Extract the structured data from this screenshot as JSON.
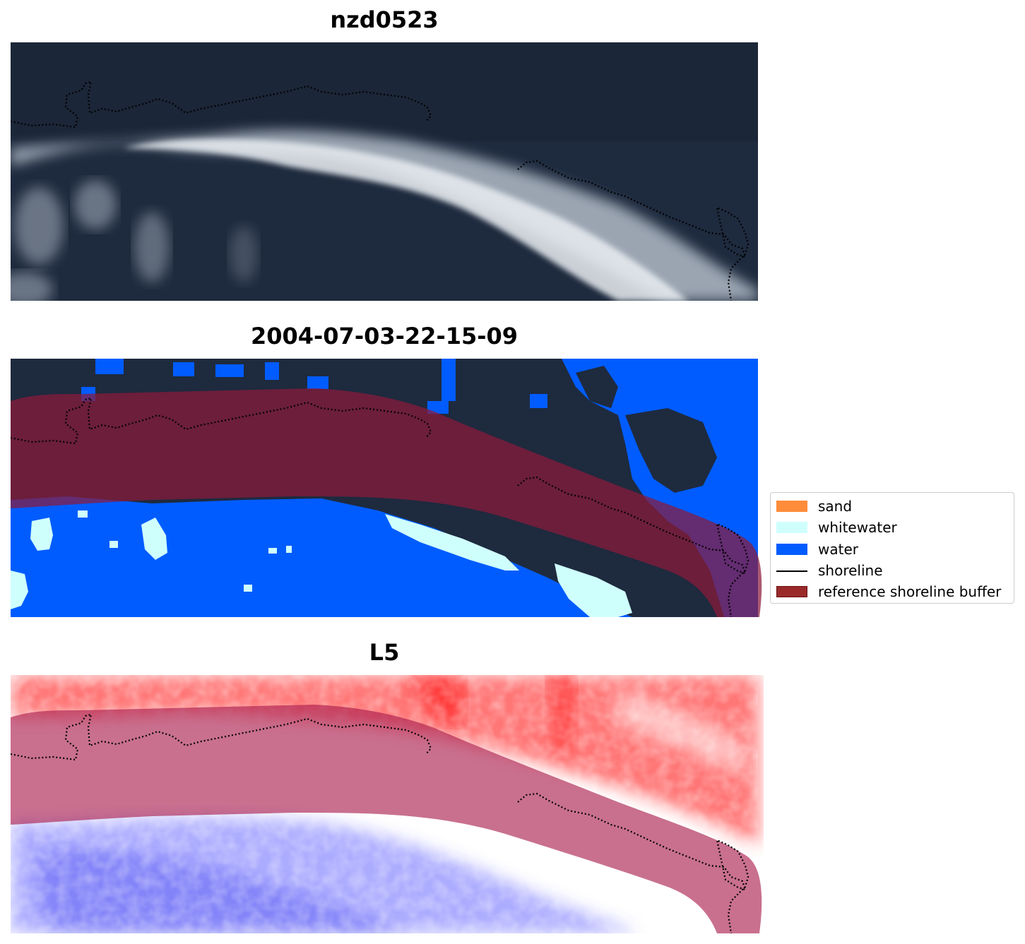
{
  "panels": {
    "satellite": {
      "title": "nzd0523"
    },
    "classification": {
      "title": "2004-07-03-22-15-09"
    },
    "index": {
      "title": "L5"
    }
  },
  "legend": {
    "items": [
      {
        "label": "sand",
        "color": "#ff8c3a",
        "kind": "patch"
      },
      {
        "label": "whitewater",
        "color": "#cffffd",
        "kind": "patch"
      },
      {
        "label": "water",
        "color": "#005cff",
        "kind": "patch"
      },
      {
        "label": "shoreline",
        "color": "#000000",
        "kind": "line"
      },
      {
        "label": "reference shoreline buffer",
        "color": "#9a2a2a",
        "kind": "patch"
      }
    ]
  },
  "colors": {
    "sea_dark": "#1f2b3f",
    "water_class": "#005cff",
    "whitewater_class": "#cffffd",
    "buffer": "#8b1a3a",
    "index_positive": "#ff2020",
    "index_negative": "#2a2aff"
  }
}
